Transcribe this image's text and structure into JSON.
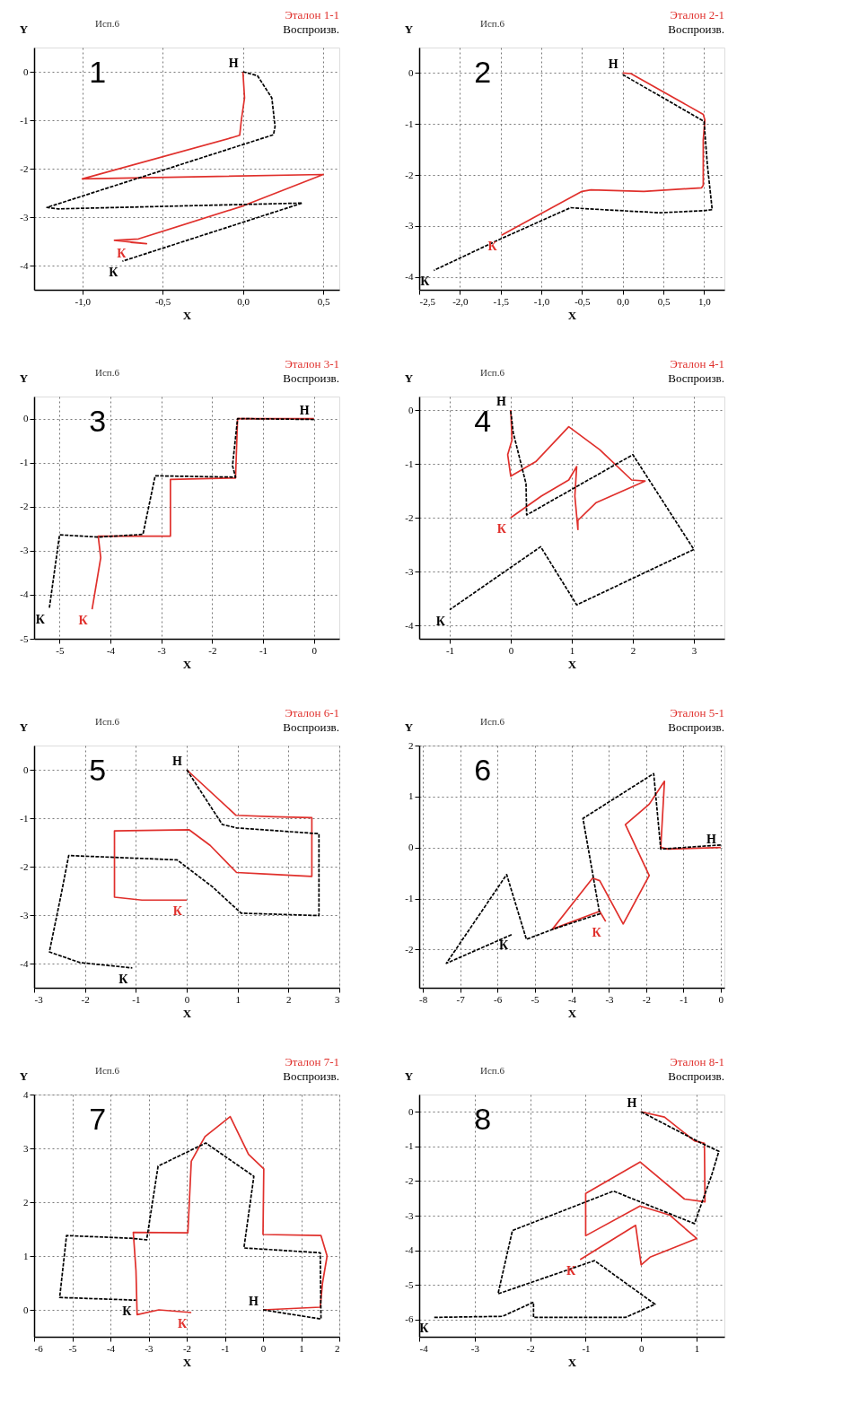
{
  "chart_data": [
    {
      "type": "line",
      "title": "1",
      "subtitle": "Исп.6",
      "xlabel": "X",
      "ylabel": "Y",
      "grid": true,
      "legend": "top right",
      "xlim": [
        -1.3,
        0.6
      ],
      "xticks": [
        {
          "value": -1,
          "label": "-1,0"
        },
        {
          "value": -0.5,
          "label": "-0,5"
        },
        {
          "value": 0,
          "label": "0,0"
        },
        {
          "value": 0.5,
          "label": "0,5"
        }
      ],
      "ylim": [
        -4.5,
        0.5
      ],
      "yticks": [
        -4,
        -3,
        -2,
        -1,
        0
      ],
      "series": [
        {
          "name": "Эталон 1-1",
          "color": "#e0302c",
          "line_style": "solid",
          "x": [
            0,
            0.01,
            -0.01,
            -0.02,
            -0.07,
            -1.0,
            0.5,
            0.0,
            -0.65,
            -0.8,
            -0.6,
            -0.7
          ],
          "values": [
            0,
            -0.54,
            -1.0,
            -1.31,
            -1.36,
            -2.21,
            -2.12,
            -2.77,
            -3.45,
            -3.48,
            -3.55,
            -3.52
          ]
        },
        {
          "name": "Воспроизв.",
          "color": "#000000",
          "line_style": "dashed",
          "x": [
            0,
            0.09,
            0.18,
            0.2,
            0.19,
            -1.22,
            -1.15,
            0.37,
            -0.75
          ],
          "values": [
            0,
            -0.08,
            -0.54,
            -1.13,
            -1.3,
            -2.8,
            -2.83,
            -2.71,
            -3.91
          ]
        }
      ],
      "annotations": [
        {
          "text": "Н",
          "x": 0,
          "y": 0
        },
        {
          "text": "К",
          "x": -0.7,
          "y": -3.52
        },
        {
          "text": "К",
          "x": -0.75,
          "y": -3.91
        }
      ]
    },
    {
      "type": "line",
      "title": "2",
      "subtitle": "Исп.6",
      "xlabel": "X",
      "ylabel": "Y",
      "grid": true,
      "legend": "top right",
      "xlim": [
        -2.5,
        1.25
      ],
      "xticks": [
        {
          "value": -2.5,
          "label": "-2,5"
        },
        {
          "value": -2,
          "label": "-2,0"
        },
        {
          "value": -1.5,
          "label": "-1,5"
        },
        {
          "value": -1,
          "label": "-1,0"
        },
        {
          "value": -0.5,
          "label": "-0,5"
        },
        {
          "value": 0,
          "label": "0,0"
        },
        {
          "value": 0.5,
          "label": "0,5"
        },
        {
          "value": 1,
          "label": "1,0"
        }
      ],
      "ylim": [
        -4.25,
        0.5
      ],
      "yticks": [
        -4,
        -3,
        -2,
        -1,
        0
      ],
      "series": [
        {
          "name": "Эталон 2-1",
          "color": "#e0302c",
          "line_style": "solid",
          "x": [
            0,
            0.1,
            0.99,
            1.01,
            0.99,
            0.99,
            0.97,
            0.26,
            -0.39,
            -0.5,
            -1.49
          ],
          "values": [
            0,
            -0.01,
            -0.81,
            -0.92,
            -1.31,
            -2.2,
            -2.25,
            -2.32,
            -2.29,
            -2.32,
            -3.18
          ]
        },
        {
          "name": "Воспроизв.",
          "color": "#000000",
          "line_style": "dashed",
          "x": [
            0,
            1.0,
            1.04,
            1.1,
            0.99,
            0.46,
            -0.46,
            -0.64,
            -1.51,
            -2.32
          ],
          "values": [
            -0.03,
            -0.95,
            -1.79,
            -2.68,
            -2.7,
            -2.74,
            -2.66,
            -2.64,
            -3.26,
            -3.87
          ]
        }
      ],
      "annotations": [
        {
          "text": "Н",
          "x": 0,
          "y": 0
        },
        {
          "text": "К",
          "x": -1.49,
          "y": -3.18
        },
        {
          "text": "К",
          "x": -2.32,
          "y": -3.87
        }
      ]
    },
    {
      "type": "line",
      "title": "3",
      "subtitle": "Исп.6",
      "xlabel": "X",
      "ylabel": "Y",
      "grid": true,
      "legend": "top right",
      "xlim": [
        -5.5,
        0.5
      ],
      "xticks": [
        -5,
        -4,
        -3,
        -2,
        -1,
        0
      ],
      "ylim": [
        -5,
        0.5
      ],
      "yticks": [
        -5,
        -4,
        -3,
        -2,
        -1,
        0
      ],
      "series": [
        {
          "name": "Эталон 3-1",
          "color": "#e0302c",
          "line_style": "solid",
          "x": [
            0,
            -1.5,
            -1.54,
            -2.82,
            -2.82,
            -4.24,
            -4.19,
            -4.36
          ],
          "values": [
            0,
            0,
            -1.35,
            -1.38,
            -2.67,
            -2.67,
            -3.16,
            -4.33
          ]
        },
        {
          "name": "Воспроизв.",
          "color": "#000000",
          "line_style": "dashed",
          "x": [
            0,
            -1.5,
            -1.6,
            -1.54,
            -3.12,
            -3.36,
            -4.24,
            -5.0,
            -5.2
          ],
          "values": [
            -0.02,
            0,
            -1.07,
            -1.33,
            -1.3,
            -2.63,
            -2.69,
            -2.64,
            -4.3
          ]
        }
      ],
      "annotations": [
        {
          "text": "Н",
          "x": 0,
          "y": 0
        },
        {
          "text": "К",
          "x": -4.36,
          "y": -4.33
        },
        {
          "text": "К",
          "x": -5.2,
          "y": -4.3
        }
      ]
    },
    {
      "type": "line",
      "title": "4",
      "subtitle": "Исп.6",
      "xlabel": "X",
      "ylabel": "Y",
      "grid": true,
      "legend": "top right",
      "xlim": [
        -1.5,
        3.5
      ],
      "xticks": [
        -1,
        0,
        1,
        2,
        3
      ],
      "ylim": [
        -4.25,
        0.25
      ],
      "yticks": [
        -4,
        -3,
        -2,
        -1,
        0
      ],
      "series": [
        {
          "name": "Эталон 4-1",
          "color": "#e0302c",
          "line_style": "solid",
          "x": [
            0,
            0.02,
            -0.05,
            0,
            0.41,
            0.95,
            1.46,
            1.98,
            2.2,
            1.4,
            1.1,
            1.1,
            1.05,
            1.08,
            0.95,
            0.5,
            0
          ],
          "values": [
            0,
            -0.56,
            -0.83,
            -1.23,
            -0.96,
            -0.31,
            -0.74,
            -1.3,
            -1.32,
            -1.72,
            -2.05,
            -2.22,
            -1.6,
            -1.05,
            -1.3,
            -1.6,
            -2.0
          ]
        },
        {
          "name": "Воспроизв.",
          "color": "#000000",
          "line_style": "dashed",
          "x": [
            0,
            0.04,
            0.25,
            0.26,
            2.0,
            3.0,
            1.08,
            0.49,
            -1.0
          ],
          "values": [
            -0.02,
            -0.42,
            -1.37,
            -1.95,
            -0.83,
            -2.59,
            -3.62,
            -2.54,
            -3.71
          ]
        }
      ],
      "annotations": [
        {
          "text": "Н",
          "x": 0,
          "y": 0
        },
        {
          "text": "К",
          "x": 0,
          "y": -2.0
        },
        {
          "text": "К",
          "x": -1.0,
          "y": -3.71
        }
      ]
    },
    {
      "type": "line",
      "title": "5",
      "subtitle": "Исп.6",
      "xlabel": "X",
      "ylabel": "Y",
      "grid": true,
      "legend": "top right",
      "xlim": [
        -3,
        3
      ],
      "xticks": [
        -3,
        -2,
        -1,
        0,
        1,
        2,
        3
      ],
      "ylim": [
        -4.5,
        0.5
      ],
      "yticks": [
        -4,
        -3,
        -2,
        -1,
        0
      ],
      "series": [
        {
          "name": "Эталон 6-1",
          "color": "#e0302c",
          "line_style": "solid",
          "x": [
            0,
            0.97,
            1.72,
            2.46,
            2.46,
            1.53,
            0.98,
            0.46,
            0.05,
            -1.42,
            -1.42,
            -0.88,
            0
          ],
          "values": [
            0,
            -0.94,
            -0.97,
            -0.99,
            -2.2,
            -2.15,
            -2.12,
            -1.56,
            -1.24,
            -1.26,
            -2.63,
            -2.69,
            -2.69
          ]
        },
        {
          "name": "Воспроизв.",
          "color": "#000000",
          "line_style": "dashed",
          "x": [
            0,
            0.7,
            0.98,
            2.6,
            2.6,
            1.07,
            0.51,
            -0.19,
            -2.32,
            -2.46,
            -2.7,
            -2.1,
            -1.07
          ],
          "values": [
            0,
            -1.13,
            -1.2,
            -1.32,
            -3.01,
            -2.96,
            -2.42,
            -1.86,
            -1.77,
            -2.53,
            -3.76,
            -3.98,
            -4.09
          ]
        }
      ],
      "annotations": [
        {
          "text": "Н",
          "x": 0,
          "y": 0
        },
        {
          "text": "К",
          "x": 0,
          "y": -2.69
        },
        {
          "text": "К",
          "x": -1.07,
          "y": -4.09
        }
      ]
    },
    {
      "type": "line",
      "title": "6",
      "subtitle": "Исп.6",
      "xlabel": "X",
      "ylabel": "Y",
      "grid": true,
      "legend": "top right",
      "xlim": [
        -8.1,
        0.1
      ],
      "xticks": [
        -8,
        -7,
        -6,
        -5,
        -4,
        -3,
        -2,
        -1,
        0
      ],
      "ylim": [
        -2.75,
        2
      ],
      "yticks": [
        -2,
        -1,
        0,
        1,
        2
      ],
      "series": [
        {
          "name": "Эталон 5-1",
          "color": "#e0302c",
          "line_style": "solid",
          "x": [
            0,
            -1.42,
            -1.61,
            -1.51,
            -1.92,
            -2.56,
            -1.92,
            -2.62,
            -3.25,
            -3.44,
            -4.52,
            -3.25,
            -3.09
          ],
          "values": [
            0,
            -0.03,
            0,
            1.3,
            0.85,
            0.45,
            -0.55,
            -1.5,
            -0.65,
            -0.6,
            -1.6,
            -1.25,
            -1.45
          ]
        },
        {
          "name": "Воспроизв.",
          "color": "#000000",
          "line_style": "dashed",
          "x": [
            0,
            -1.61,
            -1.8,
            -3.7,
            -3.25,
            -4.5,
            -5.22,
            -5.75,
            -7.37,
            -5.59
          ],
          "values": [
            0.05,
            -0.03,
            1.45,
            0.57,
            -1.3,
            -1.6,
            -1.8,
            -0.53,
            -2.27,
            -1.7
          ]
        }
      ],
      "annotations": [
        {
          "text": "Н",
          "x": 0,
          "y": 0
        },
        {
          "text": "К",
          "x": -3.09,
          "y": -1.45
        },
        {
          "text": "К",
          "x": -5.59,
          "y": -1.7
        }
      ]
    },
    {
      "type": "line",
      "title": "7",
      "subtitle": "Исп.6",
      "xlabel": "X",
      "ylabel": "Y",
      "grid": true,
      "legend": "top right",
      "xlim": [
        -6,
        2
      ],
      "xticks": [
        -6,
        -5,
        -4,
        -3,
        -2,
        -1,
        0,
        1,
        2
      ],
      "ylim": [
        -0.5,
        4
      ],
      "yticks": [
        0,
        1,
        2,
        3,
        4
      ],
      "series": [
        {
          "name": "Эталон 7-1",
          "color": "#e0302c",
          "line_style": "solid",
          "x": [
            0,
            1.5,
            1.56,
            1.68,
            1.52,
            0,
            0.02,
            -0.38,
            -0.86,
            -1.52,
            -1.88,
            -1.97,
            -3.4,
            -3.33,
            -3.3,
            -2.73,
            -1.88
          ],
          "values": [
            0,
            0.05,
            0.5,
            1.0,
            1.38,
            1.4,
            2.62,
            2.89,
            3.59,
            3.22,
            2.76,
            1.43,
            1.44,
            0.73,
            -0.09,
            0,
            -0.05
          ]
        },
        {
          "name": "Воспроизв.",
          "color": "#000000",
          "line_style": "dashed",
          "x": [
            0,
            1.52,
            1.5,
            -0.5,
            -0.24,
            -1.5,
            -2.75,
            -3.05,
            -3.46,
            -5.15,
            -5.33,
            -3.33
          ],
          "values": [
            0,
            -0.17,
            1.06,
            1.15,
            2.48,
            3.1,
            2.67,
            1.3,
            1.33,
            1.38,
            0.23,
            0.18
          ]
        }
      ],
      "annotations": [
        {
          "text": "Н",
          "x": 0,
          "y": 0
        },
        {
          "text": "К",
          "x": -1.88,
          "y": -0.05
        },
        {
          "text": "К",
          "x": -3.33,
          "y": 0.18
        }
      ]
    },
    {
      "type": "line",
      "title": "8",
      "subtitle": "Исп.6",
      "xlabel": "X",
      "ylabel": "Y",
      "grid": true,
      "legend": "top right",
      "xlim": [
        -4,
        1.5
      ],
      "xticks": [
        -4,
        -3,
        -2,
        -1,
        0,
        1
      ],
      "ylim": [
        -6.5,
        0.5
      ],
      "yticks": [
        -6,
        -5,
        -4,
        -3,
        -2,
        -1,
        0
      ],
      "series": [
        {
          "name": "Эталон 8-1",
          "color": "#e0302c",
          "line_style": "solid",
          "x": [
            0,
            0.42,
            0.96,
            1.14,
            1.15,
            0.78,
            -0.02,
            -1,
            -1,
            -0.02,
            0.51,
            1,
            0.16,
            0,
            -0.1,
            -1.1
          ],
          "values": [
            0,
            -0.15,
            -0.84,
            -0.91,
            -2.6,
            -2.52,
            -1.45,
            -2.36,
            -3.58,
            -2.72,
            -2.98,
            -3.66,
            -4.2,
            -4.42,
            -3.28,
            -4.27
          ]
        },
        {
          "name": "Воспроизв.",
          "color": "#000000",
          "line_style": "dashed",
          "x": [
            0,
            1.09,
            1.4,
            1.27,
            0.96,
            -0.5,
            -2.32,
            -2.58,
            -0.84,
            0.25,
            -0.28,
            -1.94,
            -1.94,
            -2.5,
            -3.75
          ],
          "values": [
            0,
            -0.91,
            -1.14,
            -1.83,
            -3.23,
            -2.29,
            -3.43,
            -5.26,
            -4.3,
            -5.56,
            -5.94,
            -5.94,
            -5.5,
            -5.91,
            -5.94
          ]
        }
      ],
      "annotations": [
        {
          "text": "Н",
          "x": 0,
          "y": 0
        },
        {
          "text": "К",
          "x": -1.1,
          "y": -4.27
        },
        {
          "text": "К",
          "x": -3.75,
          "y": -5.94
        }
      ]
    }
  ]
}
